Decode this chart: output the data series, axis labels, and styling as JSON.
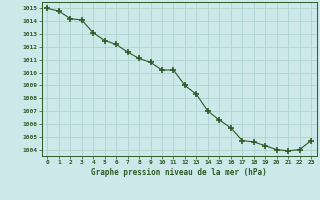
{
  "x": [
    0,
    1,
    2,
    3,
    4,
    5,
    6,
    7,
    8,
    9,
    10,
    11,
    12,
    13,
    14,
    15,
    16,
    17,
    18,
    19,
    20,
    21,
    22,
    23
  ],
  "y": [
    1015.0,
    1014.8,
    1014.2,
    1014.1,
    1013.1,
    1012.5,
    1012.2,
    1011.6,
    1011.1,
    1010.8,
    1010.2,
    1010.2,
    1009.0,
    1008.3,
    1007.0,
    1006.3,
    1005.7,
    1004.7,
    1004.6,
    1004.3,
    1004.0,
    1003.9,
    1004.0,
    1004.7
  ],
  "ylim": [
    1003.5,
    1015.5
  ],
  "yticks": [
    1004,
    1005,
    1006,
    1007,
    1008,
    1009,
    1010,
    1011,
    1012,
    1013,
    1014,
    1015
  ],
  "xlabel": "Graphe pression niveau de la mer (hPa)",
  "line_color": "#2d5a27",
  "marker_color": "#2d5a27",
  "bg_color": "#cce8e8",
  "grid_color": "#aacece",
  "tick_color": "#2d5a27",
  "label_color": "#2d5a27"
}
